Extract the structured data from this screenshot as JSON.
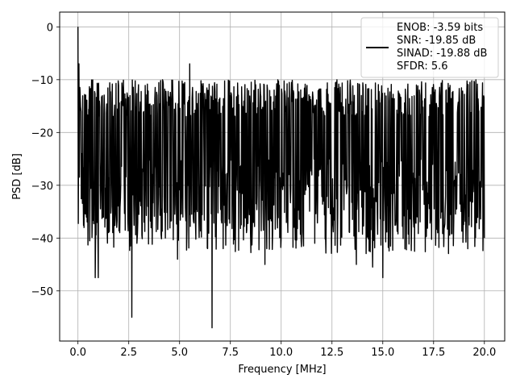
{
  "chart_data": {
    "type": "line",
    "title": "",
    "xlabel": "Frequency [MHz]",
    "ylabel": "PSD [dB]",
    "xlim": [
      -0.9,
      21.0
    ],
    "ylim": [
      -59.5,
      2.8
    ],
    "x_ticks": [
      0.0,
      2.5,
      5.0,
      7.5,
      10.0,
      12.5,
      15.0,
      17.5,
      20.0
    ],
    "x_tick_labels": [
      "0.0",
      "2.5",
      "5.0",
      "7.5",
      "10.0",
      "12.5",
      "15.0",
      "17.5",
      "20.0"
    ],
    "y_ticks": [
      0,
      -10,
      -20,
      -30,
      -40,
      -50
    ],
    "y_tick_labels": [
      "0",
      "−10",
      "−20",
      "−30",
      "−40",
      "−50"
    ],
    "grid": true,
    "legend_position": "top-right",
    "line_color": "#000000",
    "legend_entries": [
      "ENOB: -3.59 bits",
      "SNR: -19.85 dB",
      "SINAD: -19.88 dB",
      "SFDR: 5.6"
    ],
    "series": [
      {
        "x_range": [
          0.0,
          20.0
        ],
        "description_points": [
          [
            0.0,
            0.0
          ],
          [
            0.05,
            -7.0
          ],
          [
            0.1,
            -12.0
          ],
          [
            0.15,
            -16.0
          ],
          [
            0.2,
            -24.0
          ],
          [
            0.3,
            -38.0
          ],
          [
            0.5,
            -37.5
          ],
          [
            0.85,
            -47.5
          ],
          [
            1.0,
            -47.5
          ],
          [
            2.65,
            -55.0
          ],
          [
            2.9,
            -41.0
          ],
          [
            4.3,
            -40.0
          ],
          [
            4.9,
            -44.0
          ],
          [
            5.5,
            -7.0
          ],
          [
            6.6,
            -57.0
          ],
          [
            9.2,
            -45.0
          ],
          [
            11.1,
            -41.5
          ],
          [
            13.7,
            -45.0
          ],
          [
            14.5,
            -45.5
          ],
          [
            15.0,
            -47.5
          ],
          [
            17.7,
            -39.0
          ],
          [
            20.0,
            -40.0
          ]
        ],
        "noise_band": {
          "upper": -10.0,
          "lower": -34.0,
          "median": -21.0
        }
      }
    ]
  }
}
